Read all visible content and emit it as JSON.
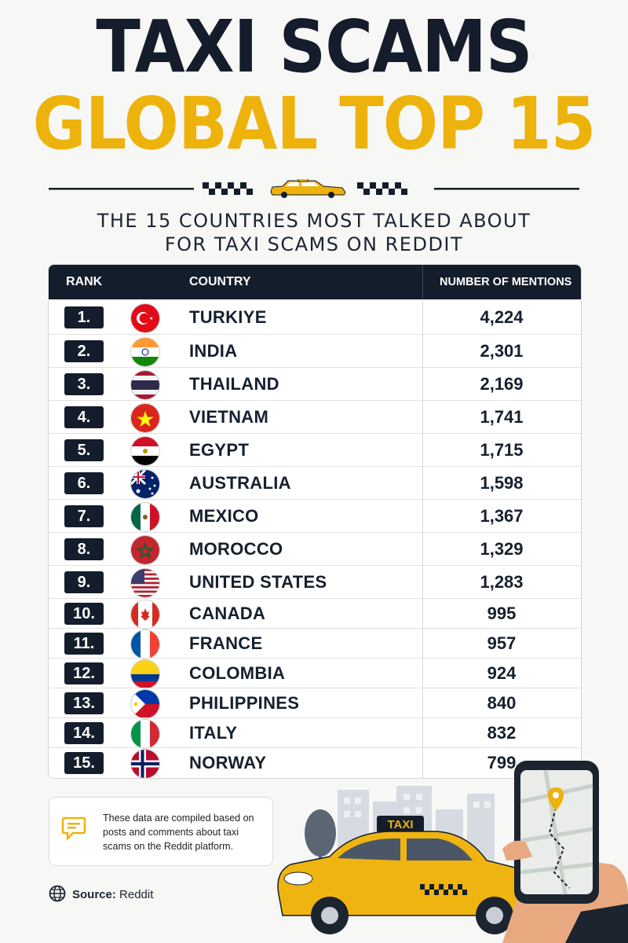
{
  "title_line1": "TAXI SCAMS",
  "title_line2": "GLOBAL TOP 15",
  "subtitle_line1": "THE 15 COUNTRIES MOST TALKED ABOUT",
  "subtitle_line2": "FOR TAXI SCAMS ON REDDIT",
  "table_headers": {
    "rank": "RANK",
    "country": "COUNTRY",
    "mentions": "NUMBER OF MENTIONS"
  },
  "chart_data": {
    "type": "table",
    "columns": [
      "RANK",
      "COUNTRY",
      "NUMBER OF MENTIONS"
    ],
    "rows": [
      {
        "rank": "1.",
        "country": "TURKIYE",
        "mentions": "4,224",
        "value": 4224,
        "flag": "turkey-flag-icon"
      },
      {
        "rank": "2.",
        "country": "INDIA",
        "mentions": "2,301",
        "value": 2301,
        "flag": "india-flag-icon"
      },
      {
        "rank": "3.",
        "country": "THAILAND",
        "mentions": "2,169",
        "value": 2169,
        "flag": "thailand-flag-icon"
      },
      {
        "rank": "4.",
        "country": "VIETNAM",
        "mentions": "1,741",
        "value": 1741,
        "flag": "vietnam-flag-icon"
      },
      {
        "rank": "5.",
        "country": "EGYPT",
        "mentions": "1,715",
        "value": 1715,
        "flag": "egypt-flag-icon"
      },
      {
        "rank": "6.",
        "country": "AUSTRALIA",
        "mentions": "1,598",
        "value": 1598,
        "flag": "australia-flag-icon"
      },
      {
        "rank": "7.",
        "country": "MEXICO",
        "mentions": "1,367",
        "value": 1367,
        "flag": "mexico-flag-icon"
      },
      {
        "rank": "8.",
        "country": "MOROCCO",
        "mentions": "1,329",
        "value": 1329,
        "flag": "morocco-flag-icon"
      },
      {
        "rank": "9.",
        "country": "UNITED STATES",
        "mentions": "1,283",
        "value": 1283,
        "flag": "usa-flag-icon"
      },
      {
        "rank": "10.",
        "country": "CANADA",
        "mentions": "995",
        "value": 995,
        "flag": "canada-flag-icon"
      },
      {
        "rank": "11.",
        "country": "FRANCE",
        "mentions": "957",
        "value": 957,
        "flag": "france-flag-icon"
      },
      {
        "rank": "12.",
        "country": "COLOMBIA",
        "mentions": "924",
        "value": 924,
        "flag": "colombia-flag-icon"
      },
      {
        "rank": "13.",
        "country": "PHILIPPINES",
        "mentions": "840",
        "value": 840,
        "flag": "philippines-flag-icon"
      },
      {
        "rank": "14.",
        "country": "ITALY",
        "mentions": "832",
        "value": 832,
        "flag": "italy-flag-icon"
      },
      {
        "rank": "15.",
        "country": "NORWAY",
        "mentions": "799",
        "value": 799,
        "flag": "norway-flag-icon"
      }
    ]
  },
  "note": {
    "icon": "chat-bubble-icon",
    "text": "These data are compiled based on posts and comments about taxi scams on the Reddit platform."
  },
  "source": {
    "icon": "globe-icon",
    "label": "Source:",
    "value": "Reddit"
  },
  "illustration": {
    "taxi_sign": "TAXI"
  },
  "colors": {
    "navy": "#141d2b",
    "yellow": "#eeb20d",
    "background": "#f7f7f5"
  }
}
